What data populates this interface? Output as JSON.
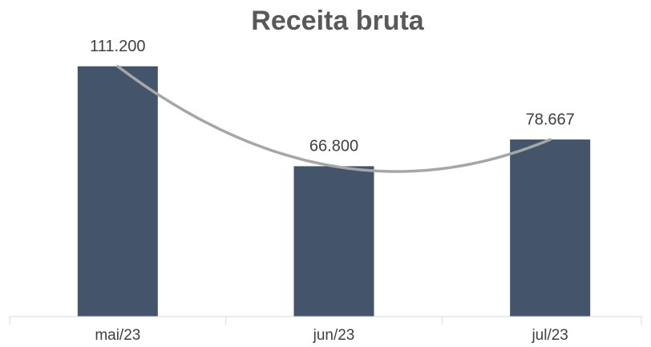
{
  "chart_data": {
    "type": "bar",
    "title": "Receita bruta",
    "categories": [
      "mai/23",
      "jun/23",
      "jul/23"
    ],
    "values": [
      111200,
      66800,
      78667
    ],
    "value_labels": [
      "111.200",
      "66.800",
      "78.667"
    ],
    "color": "#44546a",
    "ylim": [
      0,
      120000
    ],
    "trendline": {
      "type": "polynomial",
      "order": 2,
      "color": "#a6a6a6"
    }
  }
}
